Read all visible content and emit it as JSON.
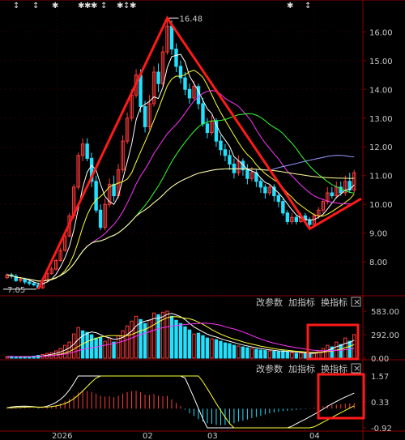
{
  "chart_data": {
    "type": "candlestick",
    "price_axis": {
      "ticks": [
        "16.00",
        "15.00",
        "14.00",
        "13.00",
        "12.00",
        "11.00",
        "10.00",
        "9.00",
        "8.00"
      ],
      "ylim": [
        7.0,
        16.6
      ]
    },
    "x_ticks": [
      "2026",
      "02",
      "03",
      "04"
    ],
    "annotations": {
      "high": "16.48",
      "low": "7.05"
    },
    "volume_axis": {
      "ticks": [
        "583.00",
        "292.00",
        "0.00"
      ]
    },
    "macd_axis": {
      "ticks": [
        "1.57",
        "0.33",
        "-0.92"
      ]
    },
    "panel_buttons": [
      "改参数",
      "加指标",
      "换指标"
    ],
    "close_symbol": "×",
    "top_markers": [
      "↕",
      "↕",
      "✱",
      "✱",
      "✱",
      "✱",
      "↕",
      "✱",
      "↕",
      "✱",
      "✱",
      "↕"
    ],
    "candles": [
      [
        7.45,
        7.55,
        7.4,
        7.6
      ],
      [
        7.55,
        7.5,
        7.42,
        7.62
      ],
      [
        7.5,
        7.35,
        7.3,
        7.58
      ],
      [
        7.35,
        7.4,
        7.28,
        7.48
      ],
      [
        7.4,
        7.3,
        7.22,
        7.45
      ],
      [
        7.3,
        7.25,
        7.18,
        7.38
      ],
      [
        7.25,
        7.2,
        7.15,
        7.3
      ],
      [
        7.2,
        7.1,
        7.05,
        7.28
      ],
      [
        7.1,
        7.35,
        7.06,
        7.4
      ],
      [
        7.35,
        7.6,
        7.3,
        7.65
      ],
      [
        7.6,
        7.75,
        7.55,
        7.85
      ],
      [
        7.75,
        8.05,
        7.7,
        8.1
      ],
      [
        8.05,
        8.4,
        8.0,
        8.5
      ],
      [
        8.4,
        8.9,
        8.35,
        9.0
      ],
      [
        8.9,
        9.6,
        8.85,
        9.7
      ],
      [
        9.6,
        10.6,
        9.5,
        10.7
      ],
      [
        10.6,
        11.7,
        10.5,
        11.8
      ],
      [
        11.7,
        12.1,
        11.5,
        12.3
      ],
      [
        12.1,
        11.6,
        11.5,
        12.3
      ],
      [
        11.6,
        10.8,
        10.6,
        11.8
      ],
      [
        10.8,
        9.8,
        9.7,
        11.0
      ],
      [
        9.8,
        9.2,
        9.1,
        10.0
      ],
      [
        9.2,
        10.0,
        9.1,
        10.2
      ],
      [
        10.0,
        10.7,
        9.9,
        10.9
      ],
      [
        10.7,
        10.3,
        10.1,
        11.0
      ],
      [
        10.3,
        11.2,
        10.2,
        11.4
      ],
      [
        11.2,
        12.2,
        11.1,
        12.4
      ],
      [
        12.2,
        13.0,
        12.1,
        13.2
      ],
      [
        13.0,
        13.8,
        12.9,
        14.0
      ],
      [
        13.8,
        14.5,
        13.7,
        14.7
      ],
      [
        14.5,
        13.4,
        13.2,
        14.7
      ],
      [
        13.4,
        12.7,
        12.5,
        13.6
      ],
      [
        12.7,
        13.5,
        12.6,
        13.8
      ],
      [
        13.5,
        14.6,
        13.4,
        14.8
      ],
      [
        14.6,
        14.2,
        13.9,
        14.9
      ],
      [
        14.2,
        15.3,
        14.1,
        15.5
      ],
      [
        15.3,
        16.2,
        15.2,
        16.48
      ],
      [
        16.2,
        15.4,
        15.2,
        16.4
      ],
      [
        15.4,
        14.8,
        14.6,
        15.6
      ],
      [
        14.8,
        14.4,
        14.2,
        15.0
      ],
      [
        14.4,
        14.0,
        13.8,
        14.6
      ],
      [
        14.0,
        13.7,
        13.5,
        14.2
      ],
      [
        13.7,
        14.1,
        13.6,
        14.3
      ],
      [
        14.1,
        13.5,
        13.3,
        14.2
      ],
      [
        13.5,
        12.8,
        12.7,
        13.7
      ],
      [
        12.8,
        12.5,
        12.3,
        13.0
      ],
      [
        12.5,
        12.9,
        12.4,
        13.1
      ],
      [
        12.9,
        12.2,
        12.0,
        13.0
      ],
      [
        12.2,
        11.9,
        11.7,
        12.4
      ],
      [
        11.9,
        11.7,
        11.5,
        12.1
      ],
      [
        11.7,
        11.4,
        11.2,
        11.9
      ],
      [
        11.4,
        11.1,
        10.9,
        11.6
      ],
      [
        11.1,
        11.5,
        11.0,
        11.7
      ],
      [
        11.5,
        11.2,
        11.0,
        11.6
      ],
      [
        11.2,
        10.9,
        10.7,
        11.4
      ],
      [
        10.9,
        11.1,
        10.8,
        11.3
      ],
      [
        11.1,
        10.8,
        10.6,
        11.2
      ],
      [
        10.8,
        10.6,
        10.4,
        10.9
      ],
      [
        10.6,
        10.4,
        10.2,
        10.7
      ],
      [
        10.4,
        10.6,
        10.3,
        10.7
      ],
      [
        10.6,
        10.3,
        10.1,
        10.7
      ],
      [
        10.3,
        10.1,
        9.9,
        10.4
      ],
      [
        10.1,
        9.7,
        9.6,
        10.2
      ],
      [
        9.7,
        9.4,
        9.3,
        9.8
      ],
      [
        9.4,
        9.55,
        9.3,
        9.7
      ],
      [
        9.55,
        9.4,
        9.3,
        9.65
      ],
      [
        9.4,
        9.6,
        9.35,
        9.7
      ],
      [
        9.6,
        9.45,
        9.35,
        9.7
      ],
      [
        9.45,
        9.3,
        9.15,
        9.55
      ],
      [
        9.3,
        9.6,
        9.2,
        9.7
      ],
      [
        9.6,
        9.8,
        9.5,
        9.9
      ],
      [
        9.8,
        10.1,
        9.7,
        10.2
      ],
      [
        10.1,
        10.4,
        10.0,
        10.6
      ],
      [
        10.4,
        10.3,
        10.2,
        10.6
      ],
      [
        10.3,
        10.6,
        10.2,
        10.8
      ],
      [
        10.6,
        10.4,
        10.3,
        10.8
      ],
      [
        10.4,
        10.8,
        10.3,
        11.0
      ],
      [
        10.8,
        10.5,
        10.4,
        11.1
      ],
      [
        10.5,
        11.1,
        10.4,
        11.2
      ]
    ],
    "volume": [
      [
        18,
        1
      ],
      [
        22,
        0
      ],
      [
        20,
        0
      ],
      [
        16,
        0
      ],
      [
        18,
        0
      ],
      [
        20,
        0
      ],
      [
        25,
        0
      ],
      [
        35,
        0
      ],
      [
        45,
        1
      ],
      [
        60,
        1
      ],
      [
        70,
        1
      ],
      [
        90,
        1
      ],
      [
        120,
        1
      ],
      [
        160,
        1
      ],
      [
        200,
        1
      ],
      [
        300,
        1
      ],
      [
        380,
        1
      ],
      [
        340,
        0
      ],
      [
        320,
        0
      ],
      [
        290,
        0
      ],
      [
        250,
        0
      ],
      [
        260,
        0
      ],
      [
        210,
        1
      ],
      [
        250,
        1
      ],
      [
        200,
        0
      ],
      [
        280,
        1
      ],
      [
        340,
        1
      ],
      [
        400,
        1
      ],
      [
        460,
        1
      ],
      [
        520,
        1
      ],
      [
        480,
        0
      ],
      [
        430,
        0
      ],
      [
        470,
        1
      ],
      [
        560,
        1
      ],
      [
        540,
        0
      ],
      [
        570,
        1
      ],
      [
        583,
        1
      ],
      [
        520,
        0
      ],
      [
        470,
        0
      ],
      [
        430,
        0
      ],
      [
        390,
        0
      ],
      [
        350,
        0
      ],
      [
        300,
        1
      ],
      [
        310,
        0
      ],
      [
        280,
        0
      ],
      [
        250,
        0
      ],
      [
        240,
        1
      ],
      [
        230,
        0
      ],
      [
        210,
        0
      ],
      [
        190,
        0
      ],
      [
        180,
        0
      ],
      [
        160,
        0
      ],
      [
        150,
        1
      ],
      [
        140,
        0
      ],
      [
        130,
        0
      ],
      [
        120,
        1
      ],
      [
        110,
        0
      ],
      [
        100,
        0
      ],
      [
        95,
        0
      ],
      [
        90,
        1
      ],
      [
        85,
        0
      ],
      [
        80,
        0
      ],
      [
        90,
        0
      ],
      [
        75,
        0
      ],
      [
        70,
        1
      ],
      [
        60,
        0
      ],
      [
        65,
        1
      ],
      [
        55,
        0
      ],
      [
        50,
        0
      ],
      [
        70,
        1
      ],
      [
        90,
        1
      ],
      [
        120,
        1
      ],
      [
        160,
        1
      ],
      [
        140,
        0
      ],
      [
        200,
        1
      ],
      [
        170,
        0
      ],
      [
        250,
        1
      ],
      [
        210,
        0
      ],
      [
        292,
        1
      ]
    ],
    "macd_bars": [
      0.05,
      0.06,
      0.05,
      0.04,
      0.03,
      0.02,
      0.01,
      -0.02,
      0.03,
      0.08,
      0.12,
      0.18,
      0.25,
      0.35,
      0.48,
      0.62,
      0.78,
      0.88,
      0.85,
      0.8,
      0.72,
      0.62,
      0.58,
      0.6,
      0.55,
      0.62,
      0.72,
      0.8,
      0.85,
      0.86,
      0.78,
      0.68,
      0.66,
      0.7,
      0.62,
      0.6,
      0.62,
      0.45,
      0.28,
      0.12,
      -0.05,
      -0.22,
      -0.35,
      -0.5,
      -0.62,
      -0.7,
      -0.72,
      -0.78,
      -0.8,
      -0.78,
      -0.75,
      -0.7,
      -0.62,
      -0.58,
      -0.52,
      -0.45,
      -0.4,
      -0.34,
      -0.28,
      -0.22,
      -0.18,
      -0.14,
      -0.12,
      -0.1,
      -0.08,
      -0.06,
      -0.04,
      -0.02,
      0.02,
      0.05,
      0.08,
      0.12,
      0.16,
      0.18,
      0.2,
      0.22,
      0.24,
      0.25,
      0.28
    ],
    "colors": {
      "up": "#ff3b3b",
      "down": "#22e1ff",
      "bg": "#000000",
      "grid": "#8b0000",
      "trend": "#ff1a1a",
      "ma": [
        "#ffffff",
        "#ffff33",
        "#ff33ff",
        "#33ff33",
        "#9999ff",
        "#ffff99"
      ]
    }
  }
}
